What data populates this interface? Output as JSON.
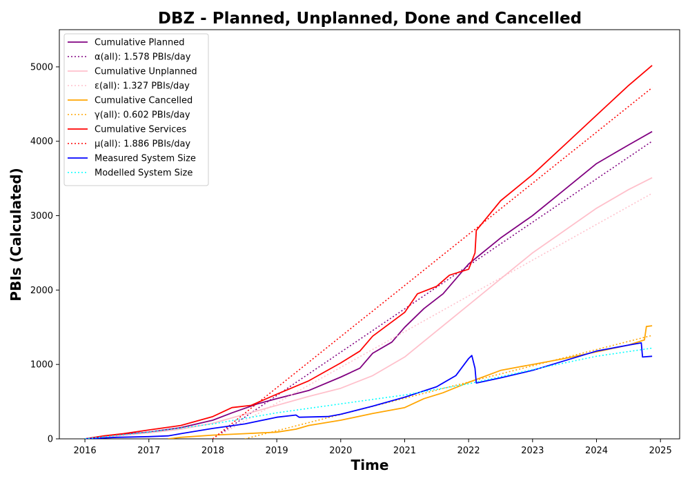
{
  "chart_data": {
    "type": "line",
    "title": "DBZ - Planned, Unplanned, Done  and Cancelled",
    "xlabel": "Time",
    "ylabel": "PBIs (Calculated)",
    "xlim": [
      2015.6,
      2025.3
    ],
    "ylim": [
      0,
      5500
    ],
    "x_ticks": [
      2016,
      2017,
      2018,
      2019,
      2020,
      2021,
      2022,
      2023,
      2024,
      2025
    ],
    "y_ticks": [
      0,
      1000,
      2000,
      3000,
      4000,
      5000
    ],
    "grid": false,
    "legend_position": "top-left",
    "series": [
      {
        "name": "Cumulative Planned",
        "color": "#800080",
        "style": "solid",
        "points": [
          [
            2016.0,
            0
          ],
          [
            2016.3,
            30
          ],
          [
            2016.6,
            60
          ],
          [
            2017.0,
            90
          ],
          [
            2017.5,
            150
          ],
          [
            2018.0,
            250
          ],
          [
            2018.3,
            350
          ],
          [
            2018.7,
            470
          ],
          [
            2019.0,
            540
          ],
          [
            2019.5,
            650
          ],
          [
            2020.0,
            830
          ],
          [
            2020.3,
            950
          ],
          [
            2020.5,
            1150
          ],
          [
            2020.8,
            1300
          ],
          [
            2021.0,
            1500
          ],
          [
            2021.3,
            1750
          ],
          [
            2021.6,
            1950
          ],
          [
            2022.0,
            2350
          ],
          [
            2022.5,
            2700
          ],
          [
            2023.0,
            3000
          ],
          [
            2023.5,
            3350
          ],
          [
            2024.0,
            3700
          ],
          [
            2024.5,
            3950
          ],
          [
            2024.87,
            4130
          ]
        ]
      },
      {
        "name": "α(all): 1.578 PBIs/day",
        "color": "#800080",
        "style": "dotted",
        "points": [
          [
            2018.0,
            0
          ],
          [
            2024.87,
            4000
          ]
        ]
      },
      {
        "name": "Cumulative Unplanned",
        "color": "#ffc0cb",
        "style": "solid",
        "points": [
          [
            2016.0,
            0
          ],
          [
            2016.5,
            40
          ],
          [
            2017.0,
            80
          ],
          [
            2017.5,
            130
          ],
          [
            2018.0,
            210
          ],
          [
            2018.5,
            330
          ],
          [
            2019.0,
            450
          ],
          [
            2019.5,
            570
          ],
          [
            2020.0,
            680
          ],
          [
            2020.5,
            850
          ],
          [
            2021.0,
            1100
          ],
          [
            2021.5,
            1450
          ],
          [
            2022.0,
            1800
          ],
          [
            2022.5,
            2150
          ],
          [
            2023.0,
            2500
          ],
          [
            2023.5,
            2800
          ],
          [
            2024.0,
            3100
          ],
          [
            2024.5,
            3350
          ],
          [
            2024.87,
            3510
          ]
        ]
      },
      {
        "name": "ε(all): 1.327 PBIs/day",
        "color": "#ffc0cb",
        "style": "dotted",
        "points": [
          [
            2018.0,
            0
          ],
          [
            2024.87,
            3300
          ]
        ]
      },
      {
        "name": "Cumulative Cancelled",
        "color": "#ffa500",
        "style": "solid",
        "points": [
          [
            2017.3,
            0
          ],
          [
            2017.5,
            20
          ],
          [
            2018.0,
            50
          ],
          [
            2018.5,
            70
          ],
          [
            2019.0,
            90
          ],
          [
            2019.3,
            130
          ],
          [
            2019.5,
            180
          ],
          [
            2020.0,
            250
          ],
          [
            2020.5,
            340
          ],
          [
            2021.0,
            420
          ],
          [
            2021.3,
            540
          ],
          [
            2021.6,
            620
          ],
          [
            2022.0,
            760
          ],
          [
            2022.5,
            920
          ],
          [
            2023.0,
            1000
          ],
          [
            2023.5,
            1080
          ],
          [
            2024.0,
            1170
          ],
          [
            2024.5,
            1260
          ],
          [
            2024.75,
            1330
          ],
          [
            2024.78,
            1510
          ],
          [
            2024.87,
            1520
          ]
        ]
      },
      {
        "name": "γ(all): 0.602 PBIs/day",
        "color": "#ffa500",
        "style": "dotted",
        "points": [
          [
            2018.5,
            0
          ],
          [
            2024.87,
            1390
          ]
        ]
      },
      {
        "name": "Cumulative Services",
        "color": "#ff0000",
        "style": "solid",
        "points": [
          [
            2016.0,
            0
          ],
          [
            2016.3,
            40
          ],
          [
            2016.6,
            70
          ],
          [
            2017.0,
            120
          ],
          [
            2017.5,
            180
          ],
          [
            2018.0,
            300
          ],
          [
            2018.3,
            420
          ],
          [
            2018.6,
            450
          ],
          [
            2019.0,
            600
          ],
          [
            2019.5,
            780
          ],
          [
            2020.0,
            1020
          ],
          [
            2020.3,
            1180
          ],
          [
            2020.5,
            1380
          ],
          [
            2021.0,
            1700
          ],
          [
            2021.2,
            1950
          ],
          [
            2021.5,
            2050
          ],
          [
            2021.7,
            2200
          ],
          [
            2022.0,
            2280
          ],
          [
            2022.1,
            2500
          ],
          [
            2022.12,
            2800
          ],
          [
            2022.5,
            3200
          ],
          [
            2023.0,
            3550
          ],
          [
            2023.5,
            3950
          ],
          [
            2024.0,
            4350
          ],
          [
            2024.5,
            4750
          ],
          [
            2024.87,
            5020
          ]
        ]
      },
      {
        "name": "μ(all): 1.886 PBIs/day",
        "color": "#ff0000",
        "style": "dotted",
        "points": [
          [
            2018.0,
            0
          ],
          [
            2024.87,
            4720
          ]
        ]
      },
      {
        "name": "Measured System Size",
        "color": "#0000ff",
        "style": "solid",
        "points": [
          [
            2016.0,
            0
          ],
          [
            2016.5,
            20
          ],
          [
            2017.0,
            30
          ],
          [
            2017.3,
            40
          ],
          [
            2017.5,
            70
          ],
          [
            2018.0,
            140
          ],
          [
            2018.5,
            200
          ],
          [
            2019.0,
            290
          ],
          [
            2019.3,
            320
          ],
          [
            2019.35,
            290
          ],
          [
            2019.8,
            300
          ],
          [
            2020.0,
            330
          ],
          [
            2020.5,
            440
          ],
          [
            2021.0,
            560
          ],
          [
            2021.5,
            700
          ],
          [
            2021.8,
            850
          ],
          [
            2022.0,
            1080
          ],
          [
            2022.05,
            1120
          ],
          [
            2022.1,
            950
          ],
          [
            2022.12,
            750
          ],
          [
            2022.5,
            820
          ],
          [
            2023.0,
            920
          ],
          [
            2023.5,
            1050
          ],
          [
            2024.0,
            1180
          ],
          [
            2024.5,
            1260
          ],
          [
            2024.7,
            1290
          ],
          [
            2024.72,
            1100
          ],
          [
            2024.87,
            1110
          ]
        ]
      },
      {
        "name": "Modelled System Size",
        "color": "#00ffff",
        "style": "dotted",
        "points": [
          [
            2016.0,
            0
          ],
          [
            2017.0,
            90
          ],
          [
            2018.0,
            200
          ],
          [
            2019.0,
            350
          ],
          [
            2020.0,
            470
          ],
          [
            2021.0,
            590
          ],
          [
            2022.0,
            740
          ],
          [
            2023.0,
            930
          ],
          [
            2024.0,
            1110
          ],
          [
            2024.87,
            1220
          ]
        ]
      }
    ]
  }
}
